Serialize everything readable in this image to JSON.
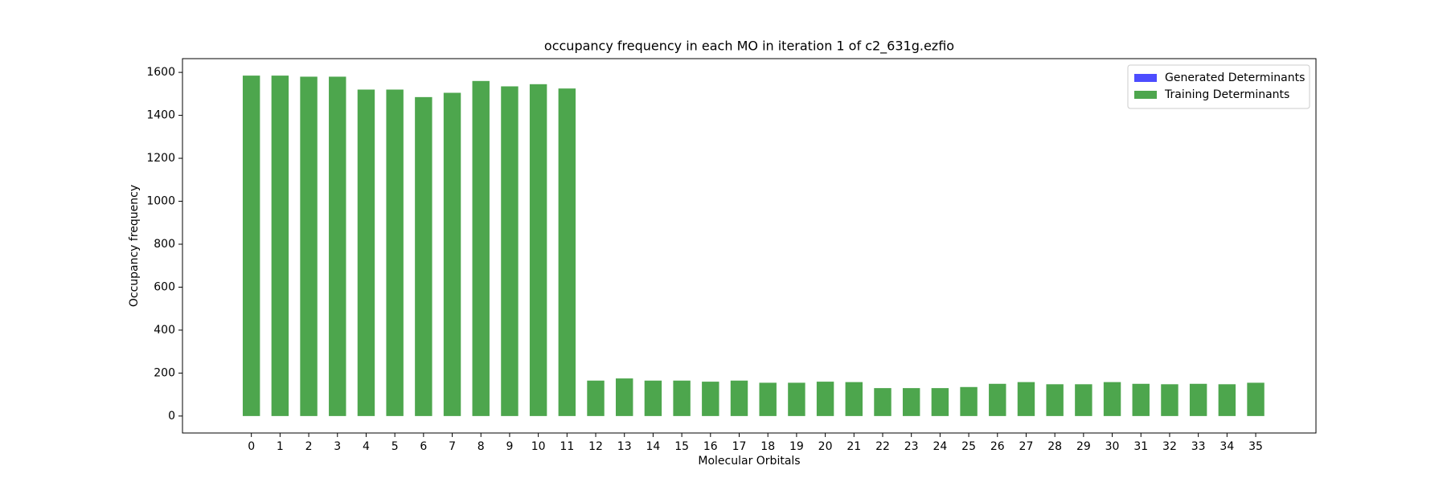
{
  "chart_data": {
    "type": "bar",
    "title": "occupancy frequency in each MO in iteration 1 of c2_631g.ezfio",
    "x_label": "Molecular Orbitals",
    "y_label": "Occupancy frequency",
    "x": [
      0,
      1,
      2,
      3,
      4,
      5,
      6,
      7,
      8,
      9,
      10,
      11,
      12,
      13,
      14,
      15,
      16,
      17,
      18,
      19,
      20,
      21,
      22,
      23,
      24,
      25,
      26,
      27,
      28,
      29,
      30,
      31,
      32,
      33,
      34,
      35
    ],
    "series": [
      {
        "name": "Generated Determinants",
        "color": "#4d4dff",
        "values": [
          null,
          null,
          null,
          null,
          null,
          null,
          null,
          null,
          null,
          null,
          null,
          null,
          null,
          null,
          null,
          null,
          null,
          null,
          null,
          null,
          null,
          null,
          null,
          null,
          null,
          null,
          null,
          null,
          null,
          null,
          null,
          null,
          null,
          null,
          null,
          null
        ]
      },
      {
        "name": "Training Determinants",
        "color": "#4da64d",
        "values": [
          1585,
          1585,
          1580,
          1580,
          1520,
          1520,
          1485,
          1505,
          1560,
          1535,
          1545,
          1525,
          165,
          175,
          165,
          165,
          160,
          165,
          155,
          155,
          160,
          158,
          130,
          130,
          130,
          135,
          150,
          158,
          148,
          148,
          158,
          150,
          148,
          150,
          148,
          155
        ]
      }
    ],
    "xlim": [
      -2.4,
      37.1
    ],
    "xticks": [
      0,
      1,
      2,
      3,
      4,
      5,
      6,
      7,
      8,
      9,
      10,
      11,
      12,
      13,
      14,
      15,
      16,
      17,
      18,
      19,
      20,
      21,
      22,
      23,
      24,
      25,
      26,
      27,
      28,
      29,
      30,
      31,
      32,
      33,
      34,
      35
    ],
    "ylim": [
      -79,
      1664
    ],
    "yticks": [
      0,
      200,
      400,
      600,
      800,
      1000,
      1200,
      1400,
      1600
    ],
    "bar_width": 0.6,
    "legend": "upper right",
    "grid": false
  }
}
